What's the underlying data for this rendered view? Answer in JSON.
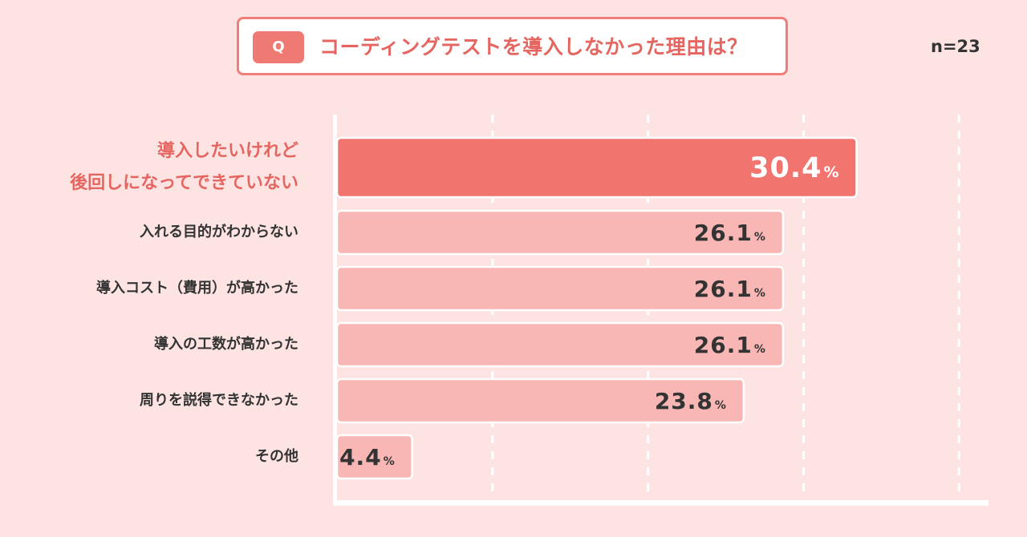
{
  "question": {
    "badge": "Q",
    "text": "コーディングテストを導入しなかった理由は？"
  },
  "sample_size": "n=23",
  "colors": {
    "accent": "#f2746e",
    "bar_default": "#f8b7b4",
    "background": "#fde4e3",
    "gridline": "#ffffff",
    "label_highlight": "#e56560",
    "label_default": "#333333"
  },
  "chart_data": {
    "type": "bar",
    "orientation": "horizontal",
    "title": "コーディングテストを導入しなかった理由は？",
    "categories": [
      "導入したいけれど\n後回しになってできていない",
      "入れる目的がわからない",
      "導入コスト（費用）が高かった",
      "導入の工数が高かった",
      "周りを説得できなかった",
      "その他"
    ],
    "values": [
      30.4,
      26.1,
      26.1,
      26.1,
      23.8,
      4.4
    ],
    "value_labels": [
      "30.4",
      "26.1",
      "26.1",
      "26.1",
      "23.8",
      "4.4"
    ],
    "unit": "%",
    "highlight_index": 0,
    "xlim": [
      0,
      36.4
    ],
    "gridlines": [
      9.1,
      18.2,
      27.3,
      36.4
    ],
    "grid": true,
    "legend": false
  }
}
